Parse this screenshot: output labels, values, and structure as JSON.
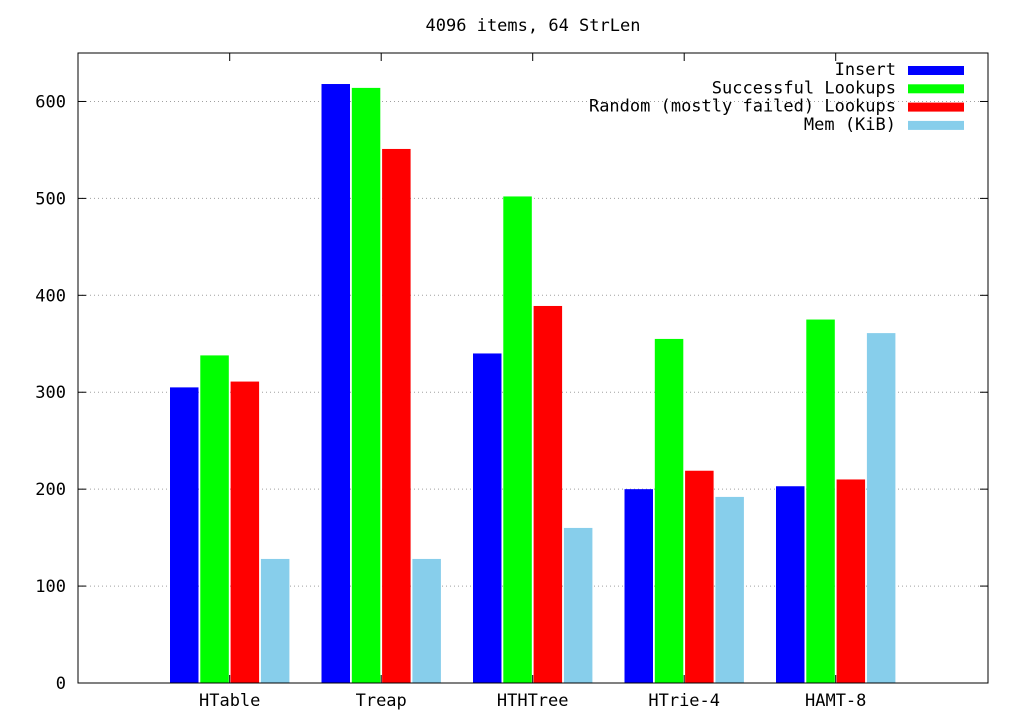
{
  "chart_data": {
    "type": "bar",
    "title": "4096 items, 64 StrLen",
    "xlabel": "",
    "ylabel": "",
    "categories": [
      "HTable",
      "Treap",
      "HTHTree",
      "HTrie-4",
      "HAMT-8"
    ],
    "series": [
      {
        "name": "Insert",
        "color": "#0000ff",
        "values": [
          305,
          618,
          340,
          200,
          203
        ]
      },
      {
        "name": "Successful Lookups",
        "color": "#00ff00",
        "values": [
          338,
          614,
          502,
          355,
          375
        ]
      },
      {
        "name": "Random (mostly failed) Lookups",
        "color": "#ff0000",
        "values": [
          311,
          551,
          389,
          219,
          210
        ]
      },
      {
        "name": "Mem (KiB)",
        "color": "#87ceeb",
        "values": [
          128,
          128,
          160,
          192,
          361
        ]
      }
    ],
    "ylim": [
      0,
      650
    ],
    "yticks": [
      0,
      100,
      200,
      300,
      400,
      500,
      600
    ],
    "grid": true,
    "legend_position": "top-right"
  }
}
